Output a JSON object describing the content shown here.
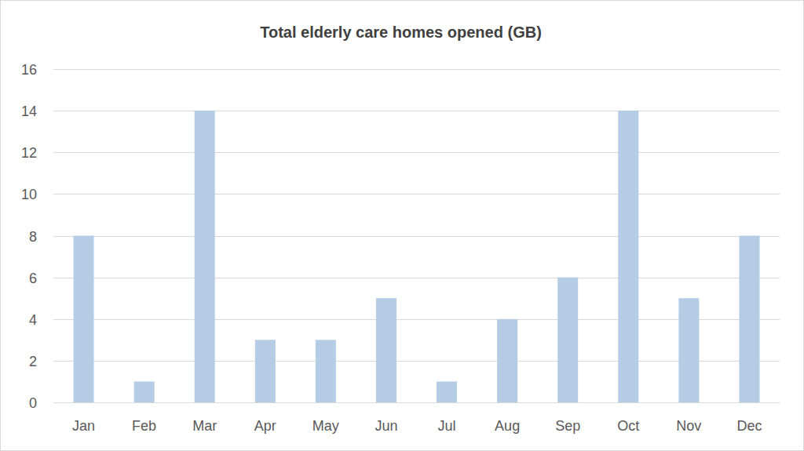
{
  "chart_data": {
    "type": "bar",
    "title": "Total elderly care homes opened (GB)",
    "categories": [
      "Jan",
      "Feb",
      "Mar",
      "Apr",
      "May",
      "Jun",
      "Jul",
      "Aug",
      "Sep",
      "Oct",
      "Nov",
      "Dec"
    ],
    "values": [
      8,
      1,
      14,
      3,
      3,
      5,
      1,
      4,
      6,
      14,
      5,
      8
    ],
    "color": "#b4cce4",
    "ylim": [
      0,
      16
    ],
    "yticks": [
      0,
      2,
      4,
      6,
      8,
      10,
      12,
      14,
      16
    ],
    "grid": true
  }
}
